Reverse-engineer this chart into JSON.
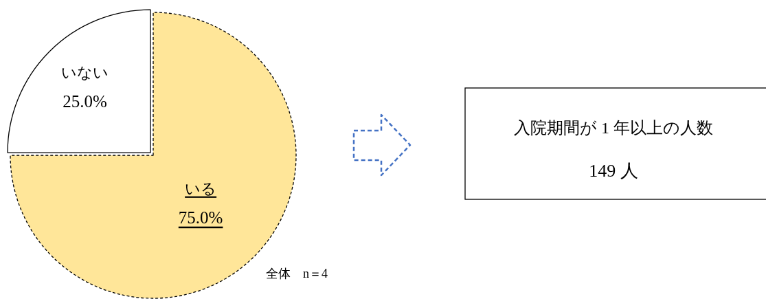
{
  "chart_data": [
    {
      "type": "pie",
      "categories": [
        "いる",
        "いない"
      ],
      "values": [
        75.0,
        25.0
      ],
      "colors": [
        "#ffe699",
        "#ffffff"
      ],
      "value_labels": [
        "75.0%",
        "25.0%"
      ],
      "annotations": [
        "全体　n＝4"
      ]
    },
    {
      "type": "other",
      "title": "入院期間が 1 年以上の人数",
      "annotations": [
        "149 人"
      ]
    }
  ]
}
